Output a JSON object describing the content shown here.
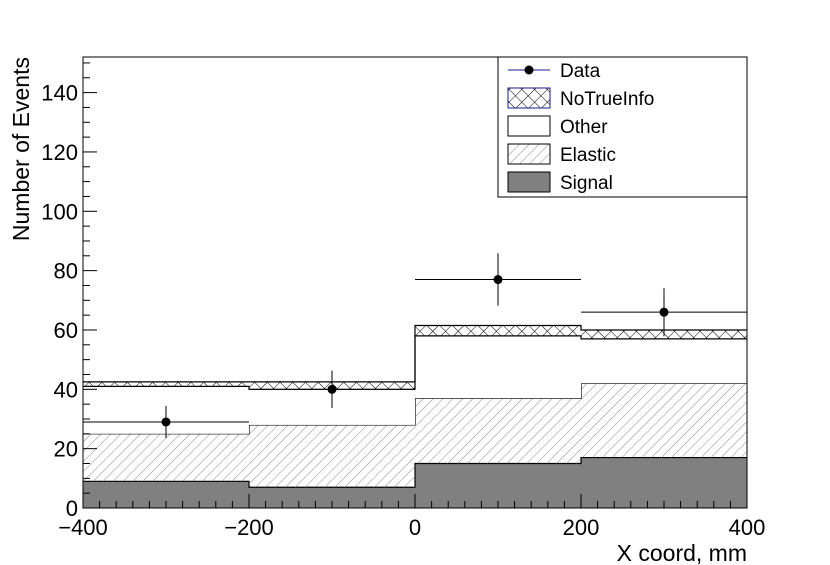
{
  "chart_data": {
    "type": "bar",
    "stacked_histogram": true,
    "xlabel": "X coord, mm",
    "ylabel": "Number of Events",
    "xlim": [
      -400,
      400
    ],
    "ylim": [
      0,
      152
    ],
    "x_ticks": [
      "−400",
      "−200",
      "0",
      "200",
      "400"
    ],
    "y_ticks": [
      "0",
      "20",
      "40",
      "60",
      "80",
      "100",
      "120",
      "140"
    ],
    "bin_edges": [
      -400,
      -200,
      0,
      200,
      400
    ],
    "legend_position": "top-right",
    "series": [
      {
        "name": "Signal",
        "values": [
          9,
          7,
          15,
          17
        ],
        "color": "#808080",
        "fill": "solid"
      },
      {
        "name": "Elastic",
        "values": [
          16,
          21,
          22,
          25
        ],
        "color": "#ffffff",
        "fill": "diagonal-hatch"
      },
      {
        "name": "Other",
        "values": [
          16,
          12,
          21,
          15
        ],
        "color": "#ffffff",
        "fill": "none"
      },
      {
        "name": "NoTrueInfo",
        "values": [
          1.5,
          2.5,
          3.5,
          3
        ],
        "color": "#ffffff",
        "fill": "cross-hatch"
      }
    ],
    "data_points": {
      "name": "Data",
      "x": [
        -300,
        -100,
        100,
        300
      ],
      "y": [
        29,
        40,
        77,
        66
      ],
      "y_err": [
        5.4,
        6.3,
        8.8,
        8.1
      ],
      "x_err": [
        100,
        100,
        100,
        100
      ]
    },
    "legend": [
      "Data",
      "NoTrueInfo",
      "Other",
      "Elastic",
      "Signal"
    ]
  }
}
